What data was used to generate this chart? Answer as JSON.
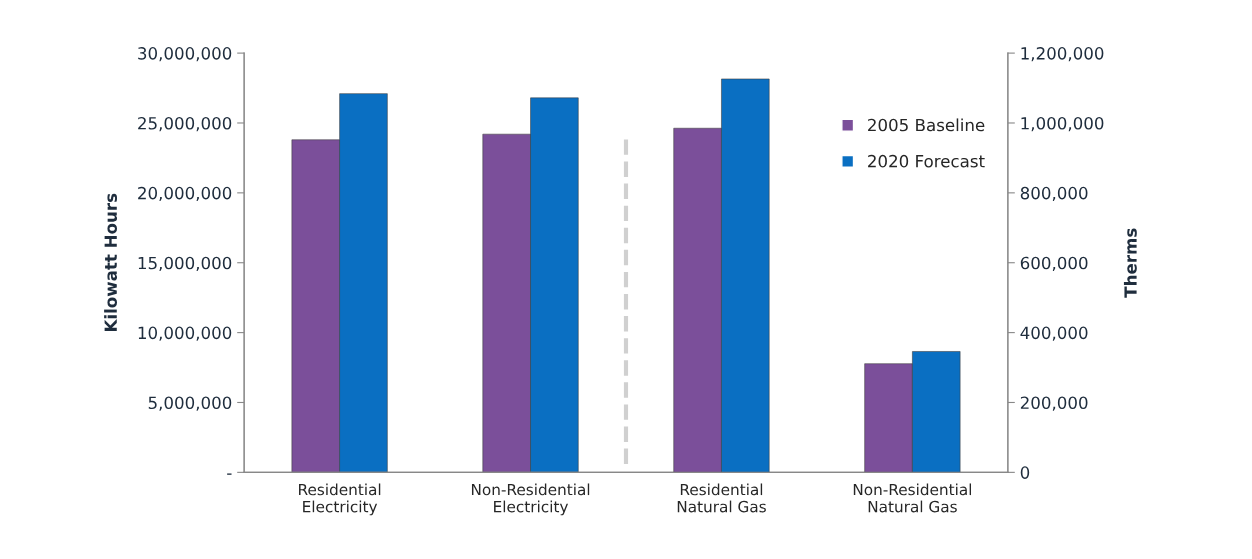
{
  "chart_data": {
    "type": "bar",
    "categories": [
      "Residential\nElectricity",
      "Non-Residential\nElectricity",
      "Residential\nNatural Gas",
      "Non-Residential\nNatural Gas"
    ],
    "ylabel": "Kilowatt Hours",
    "y2label": "Therms",
    "series": [
      {
        "name": "2005 Baseline",
        "color": "#7b4f9a",
        "values": [
          23800000,
          24200000,
          null,
          null
        ]
      },
      {
        "name": "2020 Forecast",
        "color": "#0a6fc2",
        "values": [
          27100000,
          26800000,
          null,
          null
        ]
      },
      {
        "color": "#7b4f9a",
        "axis": "y2",
        "values": [
          null,
          null,
          985000,
          311000
        ]
      },
      {
        "color": "#0a6fc2",
        "axis": "y2",
        "values": [
          null,
          null,
          1126000,
          346000
        ]
      }
    ],
    "ylim": [
      0,
      30000000
    ],
    "yticks": [
      {
        "value": 0,
        "label": "-"
      },
      {
        "value": 5000000,
        "label": "5,000,000"
      },
      {
        "value": 10000000,
        "label": "10,000,000"
      },
      {
        "value": 15000000,
        "label": "15,000,000"
      },
      {
        "value": 20000000,
        "label": "20,000,000"
      },
      {
        "value": 25000000,
        "label": "25,000,000"
      },
      {
        "value": 30000000,
        "label": "30,000,000"
      }
    ],
    "y2lim": [
      0,
      1200000
    ],
    "y2ticks": [
      0,
      {
        "value": 200000,
        "label": "200,000"
      },
      {
        "value": 400000,
        "label": "400,000"
      },
      {
        "value": 600000,
        "label": "600,000"
      },
      {
        "value": 800000,
        "label": "800,000"
      },
      {
        "value": 1000000,
        "label": "1,000,000"
      },
      {
        "value": 1200000,
        "label": "1,200,000"
      }
    ],
    "legend": "top right",
    "grid": false
  }
}
